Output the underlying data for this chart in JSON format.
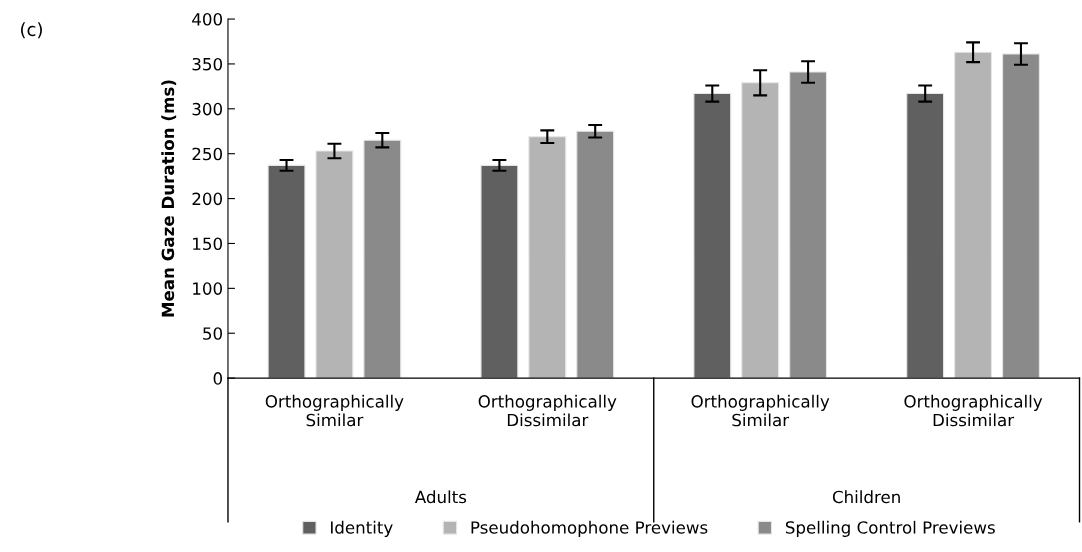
{
  "chart_data": {
    "type": "bar",
    "ylabel": "Mean Gaze Duration (ms)",
    "categories": [
      "Orthographically\nSimilar",
      "Orthographically\nDissimilar",
      "Orthographically\nSimilar",
      "Orthographically\nDissimilar"
    ],
    "series": [
      {
        "name": "Identity",
        "color": "#606060",
        "values": [
          237,
          237,
          317,
          317
        ],
        "errors": [
          6,
          6,
          9,
          9
        ]
      },
      {
        "name": "Pseudohomophone Previews",
        "color": "#b4b4b4",
        "values": [
          253,
          269,
          329,
          363
        ],
        "errors": [
          8,
          7,
          14,
          11
        ]
      },
      {
        "name": "Spelling Control Previews",
        "color": "#8a8a8a",
        "values": [
          265,
          275,
          341,
          361
        ],
        "errors": [
          8,
          7,
          12,
          12
        ]
      }
    ],
    "ylim": [
      0,
      400
    ],
    "yticks": [
      0,
      50,
      100,
      150,
      200,
      250,
      300,
      350,
      400
    ],
    "annotations": [
      "(c)",
      "Adults",
      "Children"
    ],
    "grid": false,
    "legend": "bottom"
  }
}
